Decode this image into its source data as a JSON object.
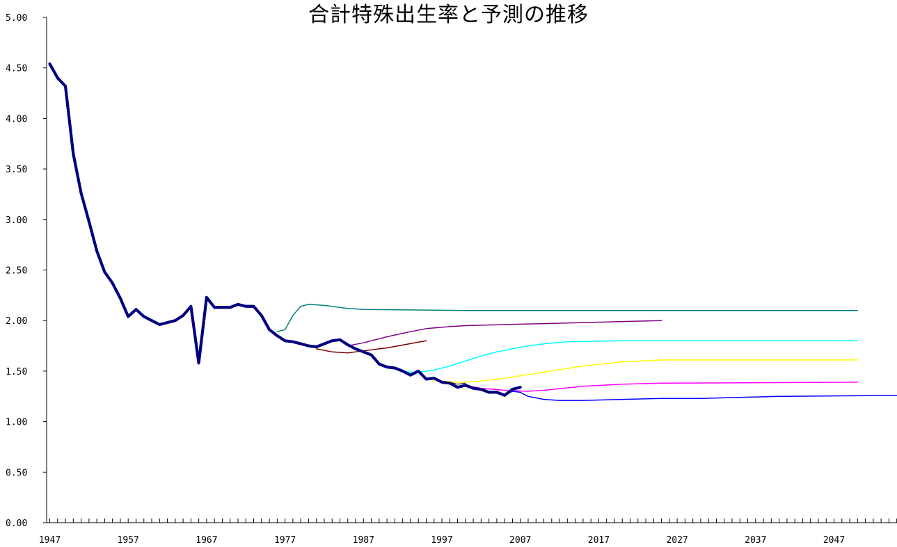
{
  "chart_data": {
    "type": "line",
    "title": "合計特殊出生率と予測の推移",
    "xlabel": "",
    "ylabel": "",
    "xlim": [
      1947,
      2055
    ],
    "ylim": [
      0,
      5
    ],
    "yticks": [
      "0.00",
      "0.50",
      "1.00",
      "1.50",
      "2.00",
      "2.50",
      "3.00",
      "3.50",
      "4.00",
      "4.50",
      "5.00"
    ],
    "xticks": [
      "1947",
      "1957",
      "1967",
      "1977",
      "1987",
      "1997",
      "2007",
      "2017",
      "2027",
      "2037",
      "2047"
    ],
    "legend": "none",
    "grid": false,
    "series": [
      {
        "color": "#000080",
        "width": 4,
        "x": [
          1947,
          1948,
          1949,
          1950,
          1951,
          1952,
          1953,
          1954,
          1955,
          1956,
          1957,
          1958,
          1959,
          1960,
          1961,
          1962,
          1963,
          1964,
          1965,
          1966,
          1967,
          1968,
          1969,
          1970,
          1971,
          1972,
          1973,
          1974,
          1975,
          1976,
          1977,
          1978,
          1979,
          1980,
          1981,
          1982,
          1983,
          1984,
          1985,
          1986,
          1987,
          1988,
          1989,
          1990,
          1991,
          1992,
          1993,
          1994,
          1995,
          1996,
          1997,
          1998,
          1999,
          2000,
          2001,
          2002,
          2003,
          2004,
          2005,
          2006,
          2007
        ],
        "y": [
          4.54,
          4.4,
          4.32,
          3.65,
          3.26,
          2.98,
          2.69,
          2.48,
          2.37,
          2.22,
          2.04,
          2.11,
          2.04,
          2.0,
          1.96,
          1.98,
          2.0,
          2.05,
          2.14,
          1.58,
          2.23,
          2.13,
          2.13,
          2.13,
          2.16,
          2.14,
          2.14,
          2.05,
          1.91,
          1.85,
          1.8,
          1.79,
          1.77,
          1.75,
          1.74,
          1.77,
          1.8,
          1.81,
          1.76,
          1.72,
          1.69,
          1.66,
          1.57,
          1.54,
          1.53,
          1.5,
          1.46,
          1.5,
          1.42,
          1.43,
          1.39,
          1.38,
          1.34,
          1.36,
          1.33,
          1.32,
          1.29,
          1.29,
          1.26,
          1.32,
          1.34
        ]
      },
      {
        "color": "#008080",
        "width": 1.5,
        "x": [
          1976,
          1977,
          1978,
          1979,
          1980,
          1982,
          1985,
          1987,
          2000,
          2025,
          2050
        ],
        "y": [
          1.89,
          1.91,
          2.05,
          2.14,
          2.16,
          2.15,
          2.12,
          2.11,
          2.1,
          2.1,
          2.1
        ]
      },
      {
        "color": "#800000",
        "width": 1.5,
        "x": [
          1981,
          1983,
          1985,
          1987,
          1990,
          1995
        ],
        "y": [
          1.72,
          1.69,
          1.68,
          1.7,
          1.73,
          1.8
        ]
      },
      {
        "color": "#800080",
        "width": 1.5,
        "x": [
          1985,
          1987,
          1990,
          1993,
          1995,
          1998,
          2000,
          2005,
          2010,
          2015,
          2025
        ],
        "y": [
          1.75,
          1.78,
          1.84,
          1.89,
          1.92,
          1.94,
          1.95,
          1.96,
          1.97,
          1.98,
          2.0
        ]
      },
      {
        "color": "#00FFFF",
        "width": 1.5,
        "x": [
          1991,
          1992,
          1993,
          1994,
          1995,
          1996,
          1998,
          2000,
          2002,
          2004,
          2006,
          2008,
          2010,
          2013,
          2020,
          2050
        ],
        "y": [
          1.52,
          1.5,
          1.49,
          1.49,
          1.5,
          1.51,
          1.55,
          1.6,
          1.65,
          1.69,
          1.72,
          1.75,
          1.77,
          1.79,
          1.8,
          1.8
        ]
      },
      {
        "color": "#FFFF00",
        "width": 1.5,
        "x": [
          1995,
          1997,
          1999,
          2000,
          2002,
          2005,
          2010,
          2015,
          2020,
          2025,
          2050
        ],
        "y": [
          1.42,
          1.4,
          1.39,
          1.39,
          1.4,
          1.43,
          1.49,
          1.55,
          1.59,
          1.61,
          1.61
        ]
      },
      {
        "color": "#FF00FF",
        "width": 1.5,
        "x": [
          2000,
          2002,
          2005,
          2008,
          2010,
          2015,
          2020,
          2025,
          2050
        ],
        "y": [
          1.36,
          1.33,
          1.31,
          1.3,
          1.31,
          1.35,
          1.37,
          1.38,
          1.39
        ]
      },
      {
        "color": "#0000FF",
        "width": 1.5,
        "x": [
          2005,
          2006,
          2007,
          2008,
          2010,
          2012,
          2015,
          2020,
          2025,
          2030,
          2040,
          2055
        ],
        "y": [
          1.26,
          1.3,
          1.29,
          1.25,
          1.22,
          1.21,
          1.21,
          1.22,
          1.23,
          1.23,
          1.25,
          1.26
        ]
      },
      {
        "color": "#000000",
        "width": 1,
        "x": [
          1995,
          1996,
          1997,
          1998,
          1999,
          2000
        ],
        "y": [
          1.42,
          1.43,
          1.4,
          1.39,
          1.37,
          1.38
        ]
      }
    ]
  }
}
